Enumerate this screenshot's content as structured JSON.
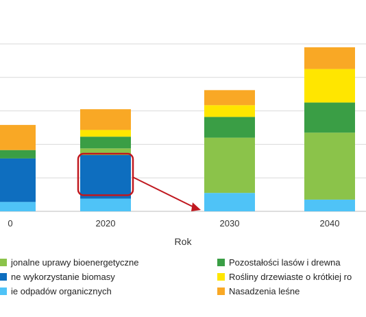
{
  "chart_data": {
    "type": "bar",
    "stacked": true,
    "categories": [
      "0",
      "2020",
      "2030",
      "2040"
    ],
    "xlabel": "Rok",
    "ylabel": "",
    "ylim": [
      0,
      5
    ],
    "grid": true,
    "legend_position": "bottom",
    "series": [
      {
        "name": "ie odpadów organicznych",
        "color": "#4FC3F7",
        "values": [
          0.28,
          0.38,
          0.55,
          0.35
        ]
      },
      {
        "name": "ne wykorzystanie biomasy",
        "color": "#0E6EBF",
        "values": [
          1.3,
          1.3,
          0,
          0
        ]
      },
      {
        "name": "jonalne uprawy bioenergetyczne",
        "color": "#8BC34A",
        "values": [
          0,
          0.2,
          1.65,
          2.0
        ]
      },
      {
        "name": "Pozostałości lasów i drewna",
        "color": "#3A9E45",
        "values": [
          0.25,
          0.35,
          0.62,
          0.9
        ]
      },
      {
        "name": "Rośliny drzewiaste o krótkiej ro",
        "color": "#FFE600",
        "values": [
          0,
          0.2,
          0.35,
          1.0
        ]
      },
      {
        "name": "Nasadzenia leśne",
        "color": "#F9A825",
        "values": [
          0.75,
          0.62,
          0.45,
          0.65
        ]
      }
    ],
    "highlight": {
      "category": "2020",
      "series": "ne wykorzystanie biomasy",
      "color": "#C0181F"
    },
    "arrow": {
      "from_category": "2020",
      "to_category": "2030",
      "color": "#C0181F"
    }
  },
  "legend": [
    {
      "label": "jonalne uprawy bioenergetyczne",
      "color": "#8BC34A"
    },
    {
      "label": "ne wykorzystanie biomasy",
      "color": "#0E6EBF"
    },
    {
      "label": "ie odpadów organicznych",
      "color": "#4FC3F7"
    },
    {
      "label": "Pozostałości lasów i drewna",
      "color": "#3A9E45"
    },
    {
      "label": "Rośliny drzewiaste o krótkiej ro",
      "color": "#FFE600"
    },
    {
      "label": "Nasadzenia leśne",
      "color": "#F9A825"
    }
  ]
}
